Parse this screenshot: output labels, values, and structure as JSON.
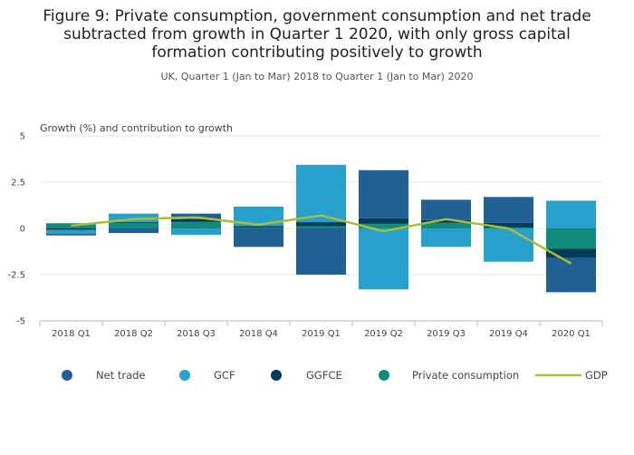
{
  "title_lines": [
    "Figure 9: Private consumption, government consumption and net trade",
    "subtracted from growth in Quarter 1 2020, with only gross capital",
    "formation contributing positively to growth"
  ],
  "subtitle": "UK, Quarter 1 (Jan to Mar) 2018 to Quarter 1 (Jan to Mar) 2020",
  "colors": {
    "net_trade": "#206095",
    "gcf": "#27a0cc",
    "ggfce": "#003c57",
    "private_consumption": "#118c7b",
    "gdp": "#a8bd3a"
  },
  "chart_data": {
    "type": "bar",
    "stacked": true,
    "title": "Figure 9: Private consumption, government consumption and net trade subtracted from growth in Quarter 1 2020, with only gross capital formation contributing positively to growth",
    "subtitle": "UK, Quarter 1 (Jan to Mar) 2018 to Quarter 1 (Jan to Mar) 2020",
    "ylabel": "Growth (%) and contribution to growth",
    "xlabel": "",
    "ylim": [
      -5,
      5
    ],
    "yticks": [
      5,
      2.5,
      0,
      -2.5,
      -5
    ],
    "ytick_labels": [
      "5",
      "2.5",
      "0",
      "-2.5",
      "-5"
    ],
    "grid": true,
    "legend": "bottom",
    "categories": [
      "2018 Q1",
      "2018 Q2",
      "2018 Q3",
      "2018 Q4",
      "2019 Q1",
      "2019 Q2",
      "2019 Q3",
      "2019 Q4",
      "2020 Q1"
    ],
    "series": [
      {
        "name": "Net trade",
        "type": "bar",
        "values": [
          -0.1,
          -0.25,
          0.3,
          -1.0,
          -2.5,
          2.6,
          1.1,
          1.4,
          -1.85
        ]
      },
      {
        "name": "GCF",
        "type": "bar",
        "values": [
          -0.2,
          0.45,
          -0.35,
          1.05,
          3.1,
          -3.3,
          -1.0,
          -1.8,
          1.5
        ]
      },
      {
        "name": "GGFCE",
        "type": "bar",
        "values": [
          -0.08,
          0.05,
          0.15,
          0.08,
          0.22,
          0.3,
          0.15,
          0.25,
          -0.5
        ]
      },
      {
        "name": "Private consumption",
        "type": "bar",
        "values": [
          0.28,
          0.3,
          0.35,
          0.05,
          0.12,
          0.25,
          0.3,
          0.05,
          -1.1
        ]
      },
      {
        "name": "GDP",
        "type": "line",
        "values": [
          0.15,
          0.5,
          0.6,
          0.2,
          0.7,
          -0.15,
          0.5,
          0.0,
          -1.9
        ]
      }
    ]
  }
}
